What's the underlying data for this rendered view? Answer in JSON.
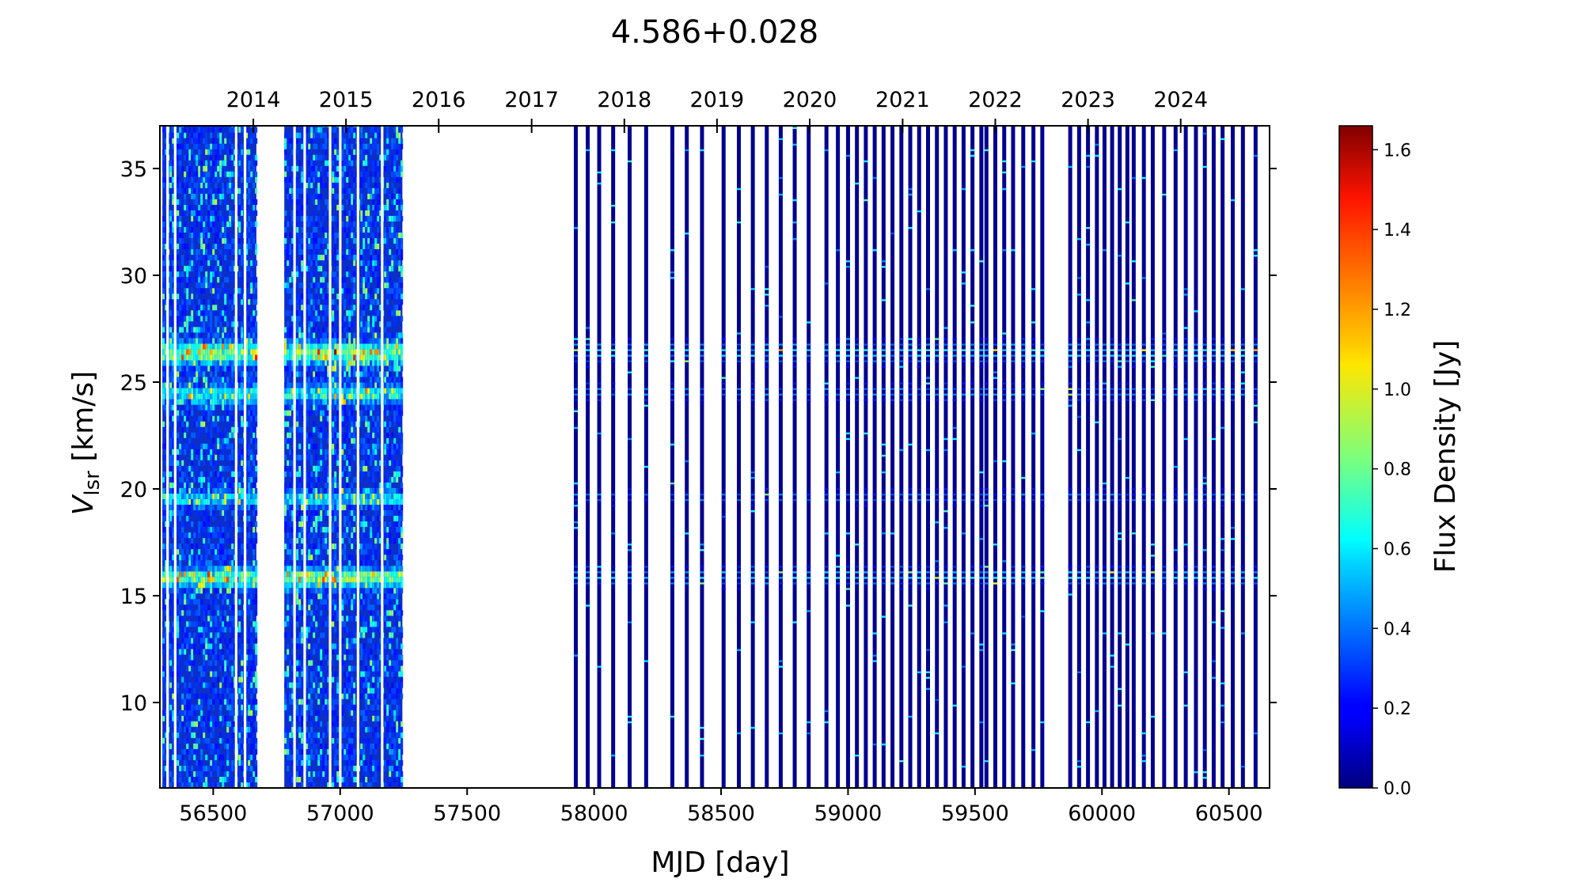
{
  "chart_data": {
    "type": "heatmap",
    "title": "4.586+0.028",
    "xlabel": "MJD [day]",
    "ylabel_main": "V",
    "ylabel_sub": "lsr",
    "ylabel_unit": " [km/s]",
    "xlim": [
      56290,
      60660
    ],
    "ylim": [
      6.0,
      37.0
    ],
    "x_ticks": [
      56500,
      57000,
      57500,
      58000,
      58500,
      59000,
      59500,
      60000,
      60500
    ],
    "y_ticks": [
      10,
      15,
      20,
      25,
      30,
      35
    ],
    "top_axis_years": [
      {
        "label": "2014",
        "mjd": 56658
      },
      {
        "label": "2015",
        "mjd": 57023
      },
      {
        "label": "2016",
        "mjd": 57388
      },
      {
        "label": "2017",
        "mjd": 57754
      },
      {
        "label": "2018",
        "mjd": 58119
      },
      {
        "label": "2019",
        "mjd": 58484
      },
      {
        "label": "2020",
        "mjd": 58849
      },
      {
        "label": "2021",
        "mjd": 59215
      },
      {
        "label": "2022",
        "mjd": 59580
      },
      {
        "label": "2023",
        "mjd": 59945
      },
      {
        "label": "2024",
        "mjd": 60310
      }
    ],
    "colorbar": {
      "label": "Flux Density [Jy]",
      "vmin": 0.0,
      "vmax": 1.66,
      "ticks": [
        "0.0",
        "0.2",
        "0.4",
        "0.6",
        "0.8",
        "1.0",
        "1.2",
        "1.4",
        "1.6"
      ],
      "colormap": "jet"
    },
    "dense_blocks": [
      {
        "from": 56300,
        "to": 56670,
        "gaps": [
          56320,
          56350,
          56590,
          56625
        ]
      },
      {
        "from": 56780,
        "to": 57245,
        "gaps": [
          56820,
          56860,
          56960,
          57000,
          57070,
          57165
        ]
      }
    ],
    "observation_epochs": [
      57928,
      57975,
      58020,
      58075,
      58140,
      58205,
      58308,
      58365,
      58425,
      58510,
      58570,
      58625,
      58680,
      58735,
      58790,
      58845,
      58915,
      58960,
      59000,
      59035,
      59070,
      59105,
      59140,
      59175,
      59210,
      59245,
      59280,
      59315,
      59350,
      59385,
      59420,
      59455,
      59490,
      59525,
      59545,
      59580,
      59615,
      59650,
      59690,
      59730,
      59765,
      59875,
      59910,
      59945,
      59980,
      60010,
      60040,
      60070,
      60100,
      60125,
      60165,
      60200,
      60245,
      60290,
      60330,
      60370,
      60405,
      60440,
      60475,
      60515,
      60555,
      60605
    ],
    "maser_features": [
      {
        "velocity": 26.2,
        "peak_flux": 0.9,
        "width": 0.35
      },
      {
        "velocity": 15.7,
        "peak_flux": 0.85,
        "width": 0.3
      },
      {
        "velocity": 24.3,
        "peak_flux": 0.55,
        "width": 0.3
      },
      {
        "velocity": 19.4,
        "peak_flux": 0.5,
        "width": 0.25
      }
    ]
  }
}
